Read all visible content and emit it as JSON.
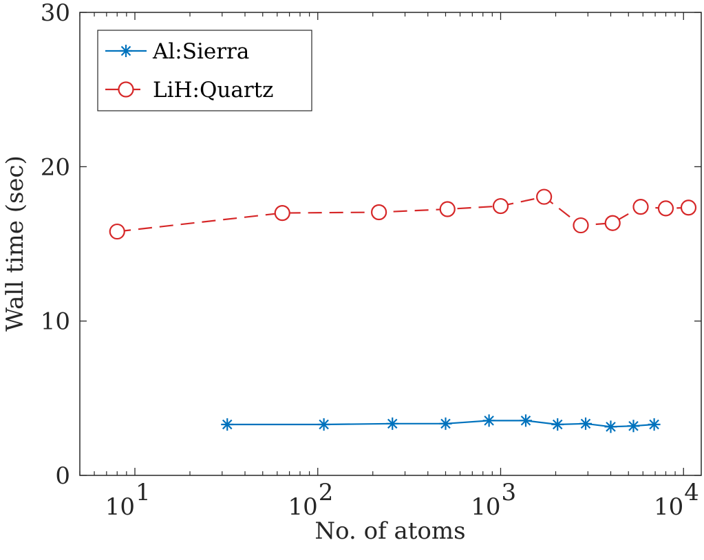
{
  "chart_data": {
    "type": "line",
    "xscale": "log",
    "xlim": [
      5,
      12500
    ],
    "ylim": [
      0,
      30
    ],
    "xlabel": "No. of atoms",
    "ylabel": "Wall time (sec)",
    "xticks": [
      {
        "value": 10,
        "base": "10",
        "exp": "1"
      },
      {
        "value": 100,
        "base": "10",
        "exp": "2"
      },
      {
        "value": 1000,
        "base": "10",
        "exp": "3"
      },
      {
        "value": 10000,
        "base": "10",
        "exp": "4"
      }
    ],
    "yticks": [
      {
        "value": 0,
        "label": "0"
      },
      {
        "value": 10,
        "label": "10"
      },
      {
        "value": 20,
        "label": "20"
      },
      {
        "value": 30,
        "label": "30"
      }
    ],
    "grid": false,
    "legend_position": "top-left",
    "series": [
      {
        "name": "Al:Sierra",
        "color": "#0072BD",
        "marker": "asterisk",
        "line": "solid",
        "x": [
          32,
          108,
          256,
          500,
          864,
          1372,
          2048,
          2916,
          4000,
          5324,
          6912
        ],
        "y": [
          3.3,
          3.3,
          3.35,
          3.35,
          3.55,
          3.55,
          3.3,
          3.35,
          3.15,
          3.2,
          3.3
        ]
      },
      {
        "name": "LiH:Quartz",
        "color": "#D62728",
        "marker": "circle",
        "line": "dashed",
        "x": [
          8,
          64,
          216,
          512,
          1000,
          1728,
          2744,
          4096,
          5832,
          8000,
          10648
        ],
        "y": [
          15.8,
          17.0,
          17.05,
          17.25,
          17.45,
          18.05,
          16.2,
          16.35,
          17.4,
          17.3,
          17.35
        ]
      }
    ]
  }
}
